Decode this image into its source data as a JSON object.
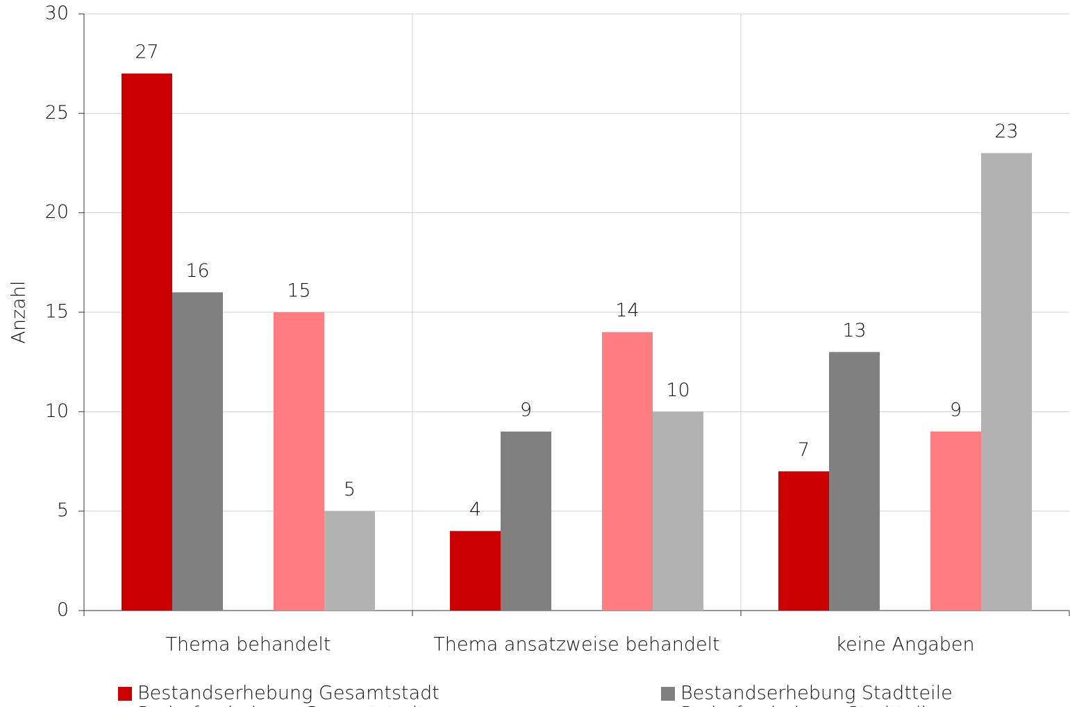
{
  "chart_data": {
    "type": "bar",
    "y_label": "Anzahl",
    "categories": [
      "Thema behandelt",
      "Thema ansatzweise behandelt",
      "keine Angaben"
    ],
    "series": [
      {
        "name": "Bestandserhebung Gesamtstadt",
        "color": "#cc0000",
        "values": [
          27,
          4,
          7
        ]
      },
      {
        "name": "Bestandserhebung Stadtteile",
        "color": "#808080",
        "values": [
          16,
          9,
          13
        ]
      },
      {
        "name": "Bedarfserhebung Gesamtstadt",
        "color": "#ff7c80",
        "values": [
          15,
          14,
          9
        ]
      },
      {
        "name": "Bedarfserhebung Stadtteile",
        "color": "#b2b2b2",
        "values": [
          5,
          10,
          23
        ]
      }
    ],
    "ylim": [
      0,
      30
    ],
    "yticks": [
      0,
      5,
      10,
      15,
      20,
      25,
      30
    ],
    "grid": true
  }
}
